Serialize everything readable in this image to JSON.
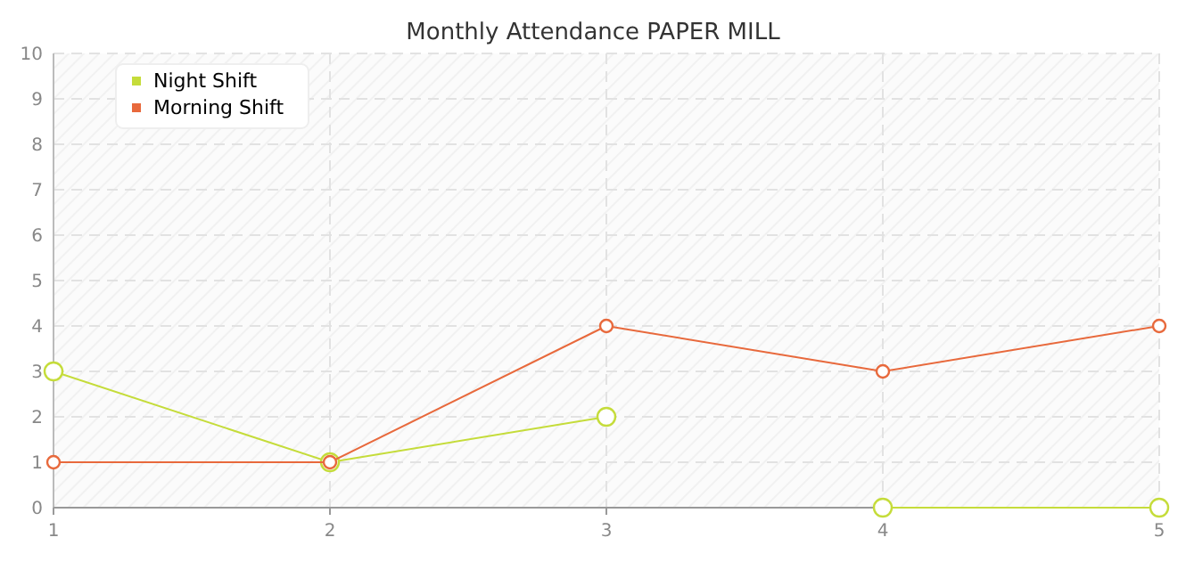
{
  "chart_data": {
    "type": "line",
    "title": "Monthly Attendance PAPER MILL",
    "x": [
      1,
      2,
      3,
      4,
      5
    ],
    "xlim": [
      1,
      5
    ],
    "xticks": [
      1,
      2,
      3,
      4,
      5
    ],
    "ylim": [
      0,
      10
    ],
    "yticks": [
      0,
      1,
      2,
      3,
      4,
      5,
      6,
      7,
      8,
      9,
      10
    ],
    "grid": true,
    "legend": "top left",
    "marker": "circle",
    "series": [
      {
        "name": "Night Shift",
        "color": "#c5dc3a",
        "x": [
          1,
          2,
          3,
          3.5,
          4,
          5
        ],
        "values": [
          3,
          1,
          2,
          null,
          0,
          0
        ]
      },
      {
        "name": "Morning Shift",
        "color": "#e8693c",
        "values": [
          1,
          1,
          4,
          3,
          4
        ]
      }
    ]
  }
}
